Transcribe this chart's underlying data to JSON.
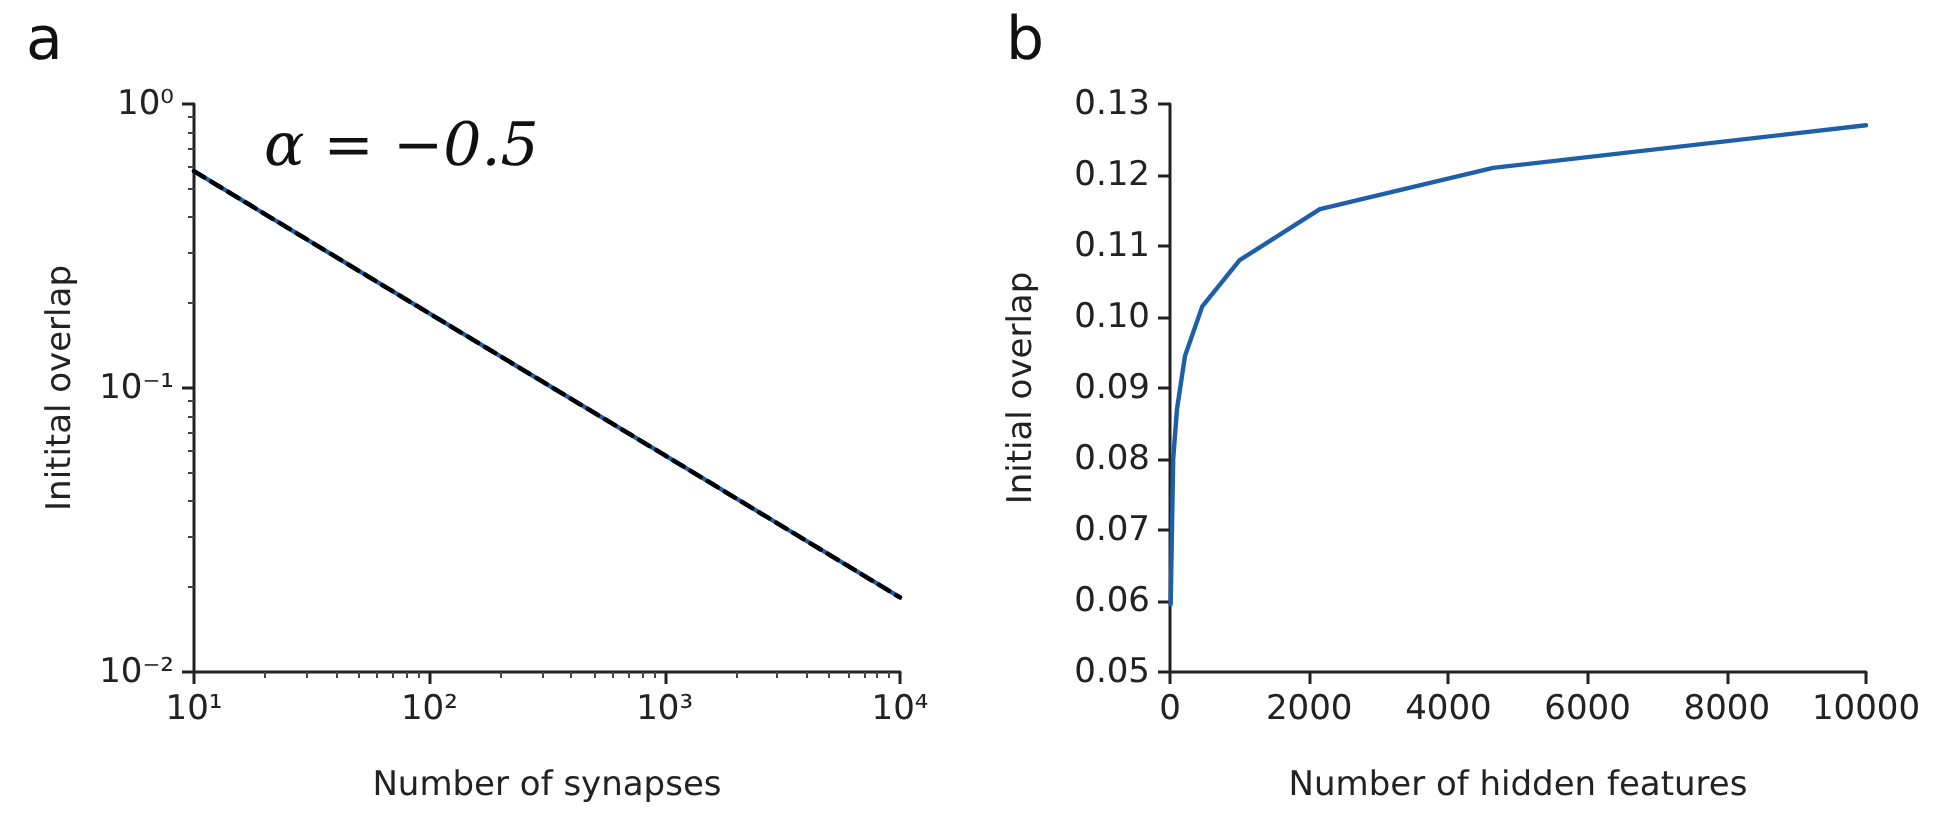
{
  "chart_data": [
    {
      "type": "line",
      "title": "a",
      "xlabel": "Number of synapses",
      "ylabel": "Initital overlap",
      "log": "xy",
      "marker": "none",
      "annotations": [
        "α = −0.5"
      ],
      "series": [
        {
          "color": "#1f5fa8",
          "line_style": "solid",
          "x": [
            10,
            100,
            1000,
            10000
          ],
          "values": [
            0.58,
            0.183,
            0.058,
            0.0183
          ]
        },
        {
          "color": "#000000",
          "line_style": "dashed",
          "x": [
            10,
            100,
            1000,
            10000
          ],
          "values": [
            0.58,
            0.183,
            0.058,
            0.0183
          ]
        }
      ],
      "xlim": [
        10,
        10000
      ],
      "xticks": [
        {
          "value": 10,
          "label": "10¹"
        },
        {
          "value": 100,
          "label": "10²"
        },
        {
          "value": 1000,
          "label": "10³"
        },
        {
          "value": 10000,
          "label": "10⁴"
        }
      ],
      "ylim": [
        0.01,
        1
      ],
      "yticks": [
        {
          "value": 0.01,
          "label": "10⁻²"
        },
        {
          "value": 0.1,
          "label": "10⁻¹"
        },
        {
          "value": 1,
          "label": "10⁰"
        }
      ]
    },
    {
      "type": "line",
      "title": "b",
      "xlabel": "Number of hidden features",
      "ylabel": "Initial overlap",
      "marker": "none",
      "series": [
        {
          "color": "#1f5fa8",
          "line_style": "solid",
          "x": [
            10,
            46,
            100,
            215,
            464,
            1000,
            2154,
            4642,
            10000
          ],
          "values": [
            0.0595,
            0.08,
            0.087,
            0.0945,
            0.1015,
            0.108,
            0.1152,
            0.121,
            0.127
          ]
        }
      ],
      "xlim": [
        0,
        10000
      ],
      "xticks": [
        0,
        2000,
        4000,
        6000,
        8000,
        10000
      ],
      "ylim": [
        0.05,
        0.13
      ],
      "yticks": [
        {
          "value": 0.05,
          "label": "0.05"
        },
        {
          "value": 0.06,
          "label": "0.06"
        },
        {
          "value": 0.07,
          "label": "0.07"
        },
        {
          "value": 0.08,
          "label": "0.08"
        },
        {
          "value": 0.09,
          "label": "0.09"
        },
        {
          "value": 0.1,
          "label": "0.10"
        },
        {
          "value": 0.11,
          "label": "0.11"
        },
        {
          "value": 0.12,
          "label": "0.12"
        },
        {
          "value": 0.13,
          "label": "0.13"
        }
      ]
    }
  ]
}
